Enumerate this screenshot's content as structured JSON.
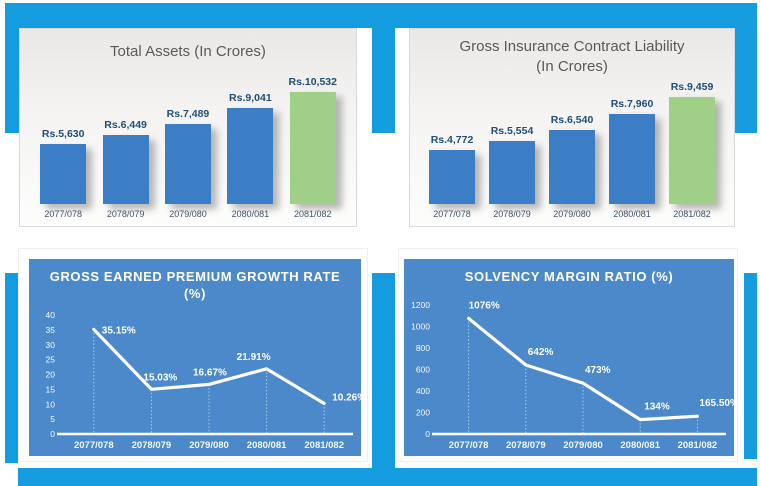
{
  "slide": {
    "accent_color": "#149CDE",
    "line_chart_bg_color": "#4B89CA"
  },
  "chart_data": [
    {
      "id": "total-assets",
      "type": "bar",
      "title": "Total Assets (In Crores)",
      "title_color": "#595959",
      "categories": [
        "2077/078",
        "2078/079",
        "2079/080",
        "2080/081",
        "2081/082"
      ],
      "values": [
        5630,
        6449,
        7489,
        9041,
        10532
      ],
      "data_labels": [
        "Rs.5,630",
        "Rs.6,449",
        "Rs.7,489",
        "Rs.9,041",
        "Rs.10,532"
      ],
      "data_label_color": "#1F4E79",
      "category_label_color": "#44546A",
      "bar_color": "#3B7EC6",
      "highlight_color": "#A0D087",
      "highlight_index": 4,
      "ylim": [
        0,
        11000
      ],
      "gridlines": false,
      "legend": "none"
    },
    {
      "id": "gross-insurance-contract-liability",
      "type": "bar",
      "title": "Gross Insurance Contract Liability",
      "title_line2": "(In Crores)",
      "title_color": "#595959",
      "categories": [
        "2077/078",
        "2078/079",
        "2079/080",
        "2080/081",
        "2081/082"
      ],
      "values": [
        4772,
        5554,
        6540,
        7960,
        9459
      ],
      "data_labels": [
        "Rs.4,772",
        "Rs.5,554",
        "Rs.6,540",
        "Rs.7,960",
        "Rs.9,459"
      ],
      "data_label_color": "#1F4E79",
      "category_label_color": "#44546A",
      "bar_color": "#3B7EC6",
      "highlight_color": "#A0D087",
      "highlight_index": 4,
      "ylim": [
        0,
        10000
      ],
      "gridlines": false,
      "legend": "none"
    },
    {
      "id": "gross-earned-premium-growth-rate",
      "type": "line",
      "title": "GROSS EARNED PREMIUM GROWTH RATE",
      "title_line2": "(%)",
      "categories": [
        "2077/078",
        "2078/079",
        "2079/080",
        "2080/081",
        "2081/082"
      ],
      "values": [
        35.15,
        15.03,
        16.67,
        21.91,
        10.26
      ],
      "data_labels": [
        "35.15%",
        "15.03%",
        "16.67%",
        "21.91%",
        "10.26%"
      ],
      "yticks": [
        0,
        5,
        10,
        15,
        20,
        25,
        30,
        35,
        40
      ],
      "ylim": [
        0,
        40
      ],
      "line_color": "#FFFFFF",
      "plot_bg_color": "#4B89CA",
      "label_pos": [
        [
          "start",
          8,
          4
        ],
        [
          "start",
          -8,
          -9
        ],
        [
          "start",
          -16,
          -9
        ],
        [
          "end",
          4,
          -9
        ],
        [
          "start",
          8,
          -3
        ]
      ],
      "gridlines": false,
      "legend": "none"
    },
    {
      "id": "solvency-margin-ratio",
      "type": "line",
      "title": "SOLVENCY MARGIN RATIO (%)",
      "categories": [
        "2077/078",
        "2078/079",
        "2079/080",
        "2080/081",
        "2081/082"
      ],
      "values": [
        1076,
        642,
        473,
        134,
        165.5
      ],
      "data_labels": [
        "1076%",
        "642%",
        "473%",
        "134%",
        "165.50%"
      ],
      "yticks": [
        0,
        200,
        400,
        600,
        800,
        1000,
        1200
      ],
      "ylim": [
        0,
        1200
      ],
      "line_color": "#FFFFFF",
      "plot_bg_color": "#4B89CA",
      "label_pos": [
        [
          "start",
          0,
          -10
        ],
        [
          "start",
          2,
          -10
        ],
        [
          "start",
          2,
          -10
        ],
        [
          "start",
          4,
          -10
        ],
        [
          "start",
          2,
          -10
        ]
      ],
      "gridlines": false,
      "legend": "none"
    }
  ]
}
